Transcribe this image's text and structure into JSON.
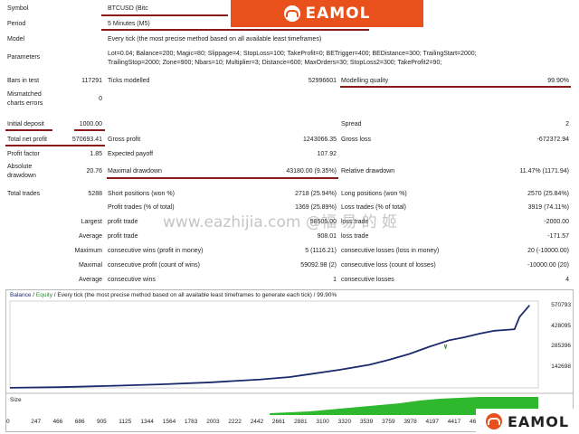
{
  "banner": {
    "brand": "EAMOL"
  },
  "corner_logo": {
    "brand": "EAMOL"
  },
  "watermark": "www.eazhijia.com @福 易 的 姬",
  "report": {
    "symbol_label": "Symbol",
    "symbol_value": "BTCUSD (Bitc",
    "period_label": "Period",
    "period_value": "5 Minutes (M5)",
    "model_label": "Model",
    "model_value": "Every tick (the most precise method based on all available least timeframes)",
    "parameters_label": "Parameters",
    "parameters_line1": "Lot=0.04; Balance=200; Magic=80; Slippage=4; StopLoss=100; TakeProfit=0; BETrigger=400; BEDistance=300; TrailingStart=2000;",
    "parameters_line2": "TrailingStop=2000; Zone=900; Nbars=10; Multiplier=3; Distance=600; MaxOrders=30; StopLoss2=300; TakeProfit2=90;",
    "bars_label": "Bars in test",
    "bars_value": "117291",
    "ticks_label": "Ticks modelled",
    "ticks_value": "52996601",
    "quality_label": "Modelling quality",
    "quality_value": "99.90%",
    "mismatched_label_1": "Mismatched",
    "mismatched_label_2": "charts errors",
    "mismatched_value": "0",
    "initial_deposit_label": "Initial deposit",
    "initial_deposit_value": "1000.00",
    "spread_label": "Spread",
    "spread_value": "2",
    "net_profit_label": "Total net profit",
    "net_profit_value": "570693.41",
    "gross_profit_label": "Gross profit",
    "gross_profit_value": "1243066.35",
    "gross_loss_label": "Gross loss",
    "gross_loss_value": "-672372.94",
    "profit_factor_label": "Profit factor",
    "profit_factor_value": "1.85",
    "expected_payoff_label": "Expected payoff",
    "expected_payoff_value": "107.92",
    "abs_dd_label_1": "Absolute",
    "abs_dd_label_2": "drawdown",
    "abs_dd_value": "20.76",
    "max_dd_label": "Maximal drawdown",
    "max_dd_value": "43180.00 (9.35%)",
    "rel_dd_label": "Relative drawdown",
    "rel_dd_value": "11.47% (1171.94)",
    "total_trades_label": "Total trades",
    "total_trades_value": "5288",
    "short_label": "Short positions (won %)",
    "short_value": "2718 (25.94%)",
    "long_label": "Long positions (won %)",
    "long_value": "2570 (25.84%)",
    "profit_trades_label": "Profit trades (% of total)",
    "profit_trades_value": "1369 (25.89%)",
    "loss_trades_label": "Loss trades (% of total)",
    "loss_trades_value": "3919 (74.11%)",
    "largest_label": "Largest",
    "largest_profit_label": "profit trade",
    "largest_profit_value": "58505.00",
    "largest_loss_label": "loss trade",
    "largest_loss_value": "-2000.00",
    "average_label": "Average",
    "average_profit_label": "profit trade",
    "average_profit_value": "908.01",
    "average_loss_label": "loss trade",
    "average_loss_value": "-171.57",
    "maximum_label": "Maximum",
    "max_cons_wins_label": "consecutive wins (profit in money)",
    "max_cons_wins_value": "5 (1116.21)",
    "max_cons_losses_label": "consecutive losses (loss in money)",
    "max_cons_losses_value": "20 (-10000.00)",
    "maximal_label": "Maximal",
    "maximal_cons_profit_label": "consecutive profit (count of wins)",
    "maximal_cons_profit_value": "59092.98 (2)",
    "maximal_cons_loss_label": "consecutive loss (count of losses)",
    "maximal_cons_loss_value": "-10000.00 (20)",
    "avg_cons_label": "Average",
    "avg_cons_wins_label": "consecutive wins",
    "avg_cons_wins_value": "1",
    "avg_cons_losses_label": "consecutive losses",
    "avg_cons_losses_value": "4"
  },
  "chart_header": {
    "balance": "Balance",
    "sep1": " / ",
    "equity": "Equity",
    "rest": " / Every tick (the most precise method based on all available least timeframes to generate each tick) / 99.90%"
  },
  "size_label": "Size",
  "colors": {
    "balance": "#1b2a6b",
    "equity": "#2e8b2e",
    "size": "#2db82d",
    "accent": "#e8501c",
    "underline": "#8b1a1a"
  },
  "chart_data": {
    "type": "line",
    "series": [
      {
        "name": "Balance",
        "x": [
          0,
          500,
          1000,
          1500,
          2000,
          2500,
          2800,
          3000,
          3300,
          3600,
          3800,
          4000,
          4200,
          4400,
          4550,
          4700,
          4850,
          4950,
          5050,
          5100,
          5200
        ],
        "values": [
          1000,
          5000,
          14000,
          24000,
          38000,
          58000,
          75000,
          95000,
          125000,
          160000,
          195000,
          235000,
          285000,
          330000,
          350000,
          375000,
          395000,
          400000,
          405000,
          490000,
          570693
        ]
      },
      {
        "name": "Equity",
        "x": [
          4350,
          4360,
          4370
        ],
        "values": [
          300000,
          270000,
          300000
        ]
      }
    ],
    "yticks": [
      "570793",
      "428095",
      "285396",
      "142698"
    ],
    "xticks": [
      "0",
      "247",
      "466",
      "686",
      "905",
      "1125",
      "1344",
      "1564",
      "1783",
      "2003",
      "2222",
      "2442",
      "2661",
      "2881",
      "3100",
      "3320",
      "3539",
      "3759",
      "3978",
      "4197",
      "4417",
      "4636",
      "4856"
    ],
    "ylim": [
      0,
      600000
    ],
    "xlim": [
      0,
      5288
    ]
  }
}
